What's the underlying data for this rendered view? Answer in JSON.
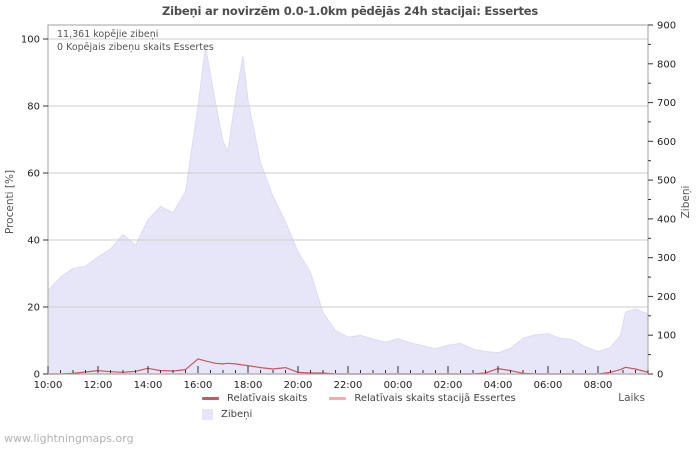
{
  "title": "Zibeņi ar novirzēm 0.0-1.0km pēdējās 24h stacijai: Essertes",
  "annotations": {
    "total": "11,361 kopējie zibeņi",
    "station_total": "0 Kopējais zibeņu skaits Essertes"
  },
  "watermark": "www.lightningmaps.org",
  "colors": {
    "area_fill": "#e6e6f8",
    "area_stroke": "#dcdcf2",
    "line_relative": "#d0545e",
    "line_station": "#f4abb2",
    "grid": "#cdcdcd",
    "border": "#a0a0a0",
    "tick_text": "#222222"
  },
  "legend": {
    "items": [
      {
        "label": "Relatīvais skaits",
        "swatch": "line",
        "color": "#d0545e"
      },
      {
        "label": "Relatīvais skaits stacijā Essertes",
        "swatch": "line",
        "color": "#f4abb2"
      },
      {
        "label": "Zibeņi",
        "swatch": "area",
        "color": "#e6e6f8"
      }
    ]
  },
  "chart_data": {
    "type": "area",
    "title": "Zibeņi ar novirzēm 0.0-1.0km pēdējās 24h stacijai: Essertes",
    "x_axis": {
      "label": "Laiks",
      "span_hours": 24,
      "start_label": "10:00",
      "tick_hours": [
        0,
        2,
        4,
        6,
        8,
        10,
        12,
        14,
        16,
        18,
        20,
        22
      ],
      "tick_labels": [
        "10:00",
        "12:00",
        "14:00",
        "16:00",
        "18:00",
        "20:00",
        "22:00",
        "00:00",
        "02:00",
        "04:00",
        "06:00",
        "08:00"
      ],
      "minor_step_hours": 0.5
    },
    "y_left": {
      "label": "Procenti [%]",
      "min": 0,
      "max": 100,
      "ticks": [
        0,
        20,
        40,
        60,
        80,
        100
      ],
      "grid": true
    },
    "y_right": {
      "label": "Zibeņi",
      "min": 0,
      "max": 900,
      "ticks": [
        0,
        100,
        200,
        300,
        400,
        500,
        600,
        700,
        800,
        900
      ],
      "minor_step": 50
    },
    "x_hours": [
      0,
      0.5,
      1,
      1.5,
      2,
      2.5,
      3,
      3.5,
      4,
      4.5,
      5,
      5.5,
      6,
      6.3,
      6.7,
      7,
      7.2,
      7.5,
      7.8,
      8,
      8.5,
      9,
      9.5,
      10,
      10.5,
      11,
      11.5,
      12,
      12.5,
      13,
      13.5,
      14,
      14.5,
      15,
      15.5,
      16,
      16.5,
      17,
      17.5,
      18,
      18.5,
      19,
      19.5,
      20,
      20.5,
      21,
      21.5,
      22,
      22.5,
      22.9,
      23.1,
      23.5,
      23.8,
      24
    ],
    "series": [
      {
        "name": "Zibeņi",
        "axis": "right",
        "type": "area",
        "color": "#e6e6f8",
        "values": [
          215,
          250,
          272,
          278,
          302,
          322,
          360,
          332,
          398,
          432,
          416,
          470,
          690,
          845,
          700,
          600,
          575,
          710,
          820,
          705,
          545,
          458,
          392,
          315,
          262,
          158,
          112,
          95,
          100,
          90,
          82,
          91,
          80,
          73,
          65,
          74,
          79,
          64,
          58,
          55,
          66,
          92,
          101,
          104,
          92,
          88,
          70,
          58,
          68,
          100,
          160,
          168,
          160,
          155
        ]
      },
      {
        "name": "Relatīvais skaits",
        "axis": "left",
        "type": "line",
        "color": "#d0545e",
        "values": [
          0,
          0,
          0.2,
          0.6,
          1.0,
          0.7,
          0.5,
          0.8,
          1.7,
          1.0,
          0.9,
          1.3,
          4.5,
          3.9,
          3.2,
          3.0,
          3.2,
          3.0,
          2.7,
          2.5,
          1.9,
          1.5,
          1.9,
          0.5,
          0.3,
          0.3,
          0,
          0,
          0,
          0,
          0,
          0,
          0,
          0,
          0,
          0,
          0,
          0,
          0.3,
          1.6,
          1.0,
          0.2,
          0,
          0,
          0,
          0,
          0,
          0,
          0.5,
          1.3,
          2.0,
          1.5,
          0.9,
          0.5
        ]
      },
      {
        "name": "Relatīvais skaits stacijā Essertes",
        "axis": "left",
        "type": "line",
        "color": "#f4abb2",
        "values": [
          0,
          0,
          0,
          0,
          0,
          0,
          0,
          0,
          0,
          0,
          0,
          0,
          0,
          0,
          0,
          0,
          0,
          0,
          0,
          0,
          0,
          0,
          0,
          0,
          0,
          0,
          0,
          0,
          0,
          0,
          0,
          0,
          0,
          0,
          0,
          0,
          0,
          0,
          0,
          0,
          0,
          0,
          0,
          0,
          0,
          0,
          0,
          0,
          0,
          0,
          0,
          0,
          0,
          0
        ]
      }
    ]
  }
}
